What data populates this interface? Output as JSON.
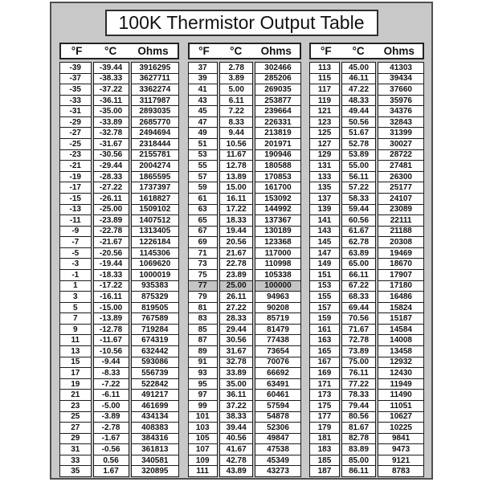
{
  "page": {
    "title": "100K Thermistor Output Table"
  },
  "colors": {
    "page_bg": "#ffffff",
    "panel_bg": "#c8c8c8",
    "panel_border": "#4f4f4f",
    "cell_bg": "#ffffff",
    "cell_border": "#1b1b1b",
    "highlight_row_bg": "#c4c4c4",
    "text": "#111111"
  },
  "tables": [
    {
      "headers": [
        "°F",
        "°C",
        "Ohms"
      ],
      "rows": [
        [
          "-39",
          "-39.44",
          "3916295"
        ],
        [
          "-37",
          "-38.33",
          "3627711"
        ],
        [
          "-35",
          "-37.22",
          "3362274"
        ],
        [
          "-33",
          "-36.11",
          "3117987"
        ],
        [
          "-31",
          "-35.00",
          "2893035"
        ],
        [
          "-29",
          "-33.89",
          "2685770"
        ],
        [
          "-27",
          "-32.78",
          "2494694"
        ],
        [
          "-25",
          "-31.67",
          "2318444"
        ],
        [
          "-23",
          "-30.56",
          "2155781"
        ],
        [
          "-21",
          "-29.44",
          "2004274"
        ],
        [
          "-19",
          "-28.33",
          "1865595"
        ],
        [
          "-17",
          "-27.22",
          "1737397"
        ],
        [
          "-15",
          "-26.11",
          "1618827"
        ],
        [
          "-13",
          "-25.00",
          "1509102"
        ],
        [
          "-11",
          "-23.89",
          "1407512"
        ],
        [
          "-9",
          "-22.78",
          "1313405"
        ],
        [
          "-7",
          "-21.67",
          "1226184"
        ],
        [
          "-5",
          "-20.56",
          "1145306"
        ],
        [
          "-3",
          "-19.44",
          "1069620"
        ],
        [
          "-1",
          "-18.33",
          "1000019"
        ],
        [
          "1",
          "-17.22",
          "935383"
        ],
        [
          "3",
          "-16.11",
          "875329"
        ],
        [
          "5",
          "-15.00",
          "819505"
        ],
        [
          "7",
          "-13.89",
          "767589"
        ],
        [
          "9",
          "-12.78",
          "719284"
        ],
        [
          "11",
          "-11.67",
          "674319"
        ],
        [
          "13",
          "-10.56",
          "632442"
        ],
        [
          "15",
          "-9.44",
          "593086"
        ],
        [
          "17",
          "-8.33",
          "556739"
        ],
        [
          "19",
          "-7.22",
          "522842"
        ],
        [
          "21",
          "-6.11",
          "491217"
        ],
        [
          "23",
          "-5.00",
          "461699"
        ],
        [
          "25",
          "-3.89",
          "434134"
        ],
        [
          "27",
          "-2.78",
          "408383"
        ],
        [
          "29",
          "-1.67",
          "384316"
        ],
        [
          "31",
          "-0.56",
          "361813"
        ],
        [
          "33",
          "0.56",
          "340581"
        ],
        [
          "35",
          "1.67",
          "320895"
        ]
      ]
    },
    {
      "headers": [
        "°F",
        "°C",
        "Ohms"
      ],
      "highlight_row_index": 20,
      "rows": [
        [
          "37",
          "2.78",
          "302466"
        ],
        [
          "39",
          "3.89",
          "285206"
        ],
        [
          "41",
          "5.00",
          "269035"
        ],
        [
          "43",
          "6.11",
          "253877"
        ],
        [
          "45",
          "7.22",
          "239664"
        ],
        [
          "47",
          "8.33",
          "226331"
        ],
        [
          "49",
          "9.44",
          "213819"
        ],
        [
          "51",
          "10.56",
          "201971"
        ],
        [
          "53",
          "11.67",
          "190946"
        ],
        [
          "55",
          "12.78",
          "180588"
        ],
        [
          "57",
          "13.89",
          "170853"
        ],
        [
          "59",
          "15.00",
          "161700"
        ],
        [
          "61",
          "16.11",
          "153092"
        ],
        [
          "63",
          "17.22",
          "144992"
        ],
        [
          "65",
          "18.33",
          "137367"
        ],
        [
          "67",
          "19.44",
          "130189"
        ],
        [
          "69",
          "20.56",
          "123368"
        ],
        [
          "71",
          "21.67",
          "117000"
        ],
        [
          "73",
          "22.78",
          "110998"
        ],
        [
          "75",
          "23.89",
          "105338"
        ],
        [
          "77",
          "25.00",
          "100000"
        ],
        [
          "79",
          "26.11",
          "94963"
        ],
        [
          "81",
          "27.22",
          "90208"
        ],
        [
          "83",
          "28.33",
          "85719"
        ],
        [
          "85",
          "29.44",
          "81479"
        ],
        [
          "87",
          "30.56",
          "77438"
        ],
        [
          "89",
          "31.67",
          "73654"
        ],
        [
          "91",
          "32.78",
          "70076"
        ],
        [
          "93",
          "33.89",
          "66692"
        ],
        [
          "95",
          "35.00",
          "63491"
        ],
        [
          "97",
          "36.11",
          "60461"
        ],
        [
          "99",
          "37.22",
          "57594"
        ],
        [
          "101",
          "38.33",
          "54878"
        ],
        [
          "103",
          "39.44",
          "52306"
        ],
        [
          "105",
          "40.56",
          "49847"
        ],
        [
          "107",
          "41.67",
          "47538"
        ],
        [
          "109",
          "42.78",
          "45349"
        ],
        [
          "111",
          "43.89",
          "43273"
        ]
      ]
    },
    {
      "headers": [
        "°F",
        "°C",
        "Ohms"
      ],
      "rows": [
        [
          "113",
          "45.00",
          "41303"
        ],
        [
          "115",
          "46.11",
          "39434"
        ],
        [
          "117",
          "47.22",
          "37660"
        ],
        [
          "119",
          "48.33",
          "35976"
        ],
        [
          "121",
          "49.44",
          "34376"
        ],
        [
          "123",
          "50.56",
          "32843"
        ],
        [
          "125",
          "51.67",
          "31399"
        ],
        [
          "127",
          "52.78",
          "30027"
        ],
        [
          "129",
          "53.89",
          "28722"
        ],
        [
          "131",
          "55.00",
          "27481"
        ],
        [
          "133",
          "56.11",
          "26300"
        ],
        [
          "135",
          "57.22",
          "25177"
        ],
        [
          "137",
          "58.33",
          "24107"
        ],
        [
          "139",
          "59.44",
          "23089"
        ],
        [
          "141",
          "60.56",
          "22111"
        ],
        [
          "143",
          "61.67",
          "21188"
        ],
        [
          "145",
          "62.78",
          "20308"
        ],
        [
          "147",
          "63.89",
          "19469"
        ],
        [
          "149",
          "65.00",
          "18670"
        ],
        [
          "151",
          "66.11",
          "17907"
        ],
        [
          "153",
          "67.22",
          "17180"
        ],
        [
          "155",
          "68.33",
          "16486"
        ],
        [
          "157",
          "69.44",
          "15824"
        ],
        [
          "159",
          "70.56",
          "15187"
        ],
        [
          "161",
          "71.67",
          "14584"
        ],
        [
          "163",
          "72.78",
          "14008"
        ],
        [
          "165",
          "73.89",
          "13458"
        ],
        [
          "167",
          "75.00",
          "12932"
        ],
        [
          "169",
          "76.11",
          "12430"
        ],
        [
          "171",
          "77.22",
          "11949"
        ],
        [
          "173",
          "78.33",
          "11490"
        ],
        [
          "175",
          "79.44",
          "11051"
        ],
        [
          "177",
          "80.56",
          "10627"
        ],
        [
          "179",
          "81.67",
          "10225"
        ],
        [
          "181",
          "82.78",
          "9841"
        ],
        [
          "183",
          "83.89",
          "9473"
        ],
        [
          "185",
          "85.00",
          "9121"
        ],
        [
          "187",
          "86.11",
          "8783"
        ]
      ]
    }
  ]
}
